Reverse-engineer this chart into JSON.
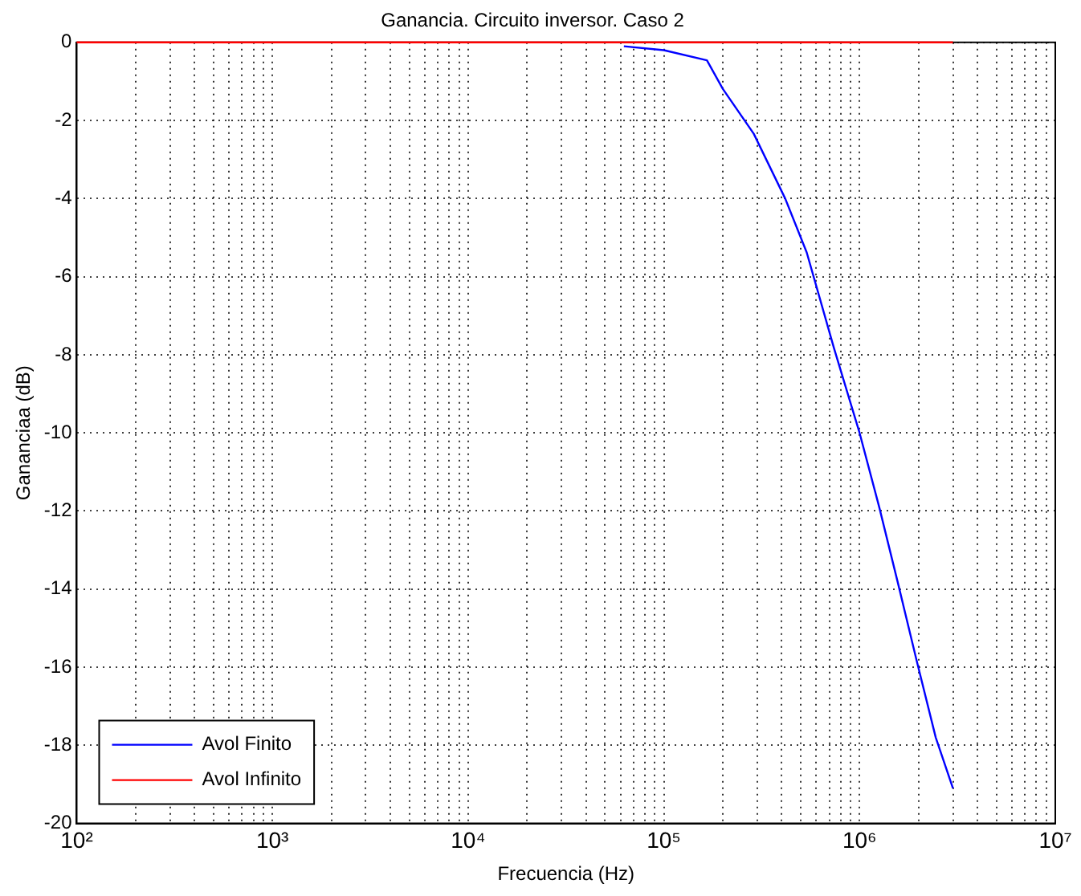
{
  "chart_data": {
    "type": "line",
    "title": "Ganancia. Circuito inversor. Caso 2",
    "xlabel": "Frecuencia (Hz)",
    "ylabel": "Gananciaa (dB)",
    "log": "x",
    "grid": true,
    "legend": "bottom left",
    "marker": "none",
    "line_style": "solid",
    "xlim": [
      100,
      10000000
    ],
    "xticks": [
      {
        "value": 100,
        "label": "10²"
      },
      {
        "value": 1000,
        "label": "10³"
      },
      {
        "value": 10000,
        "label": "10⁴"
      },
      {
        "value": 100000,
        "label": "10⁵"
      },
      {
        "value": 1000000,
        "label": "10⁶"
      },
      {
        "value": 10000000,
        "label": "10⁷"
      }
    ],
    "ylim": [
      -20,
      0
    ],
    "yticks": [
      -20,
      -18,
      -16,
      -14,
      -12,
      -10,
      -8,
      -6,
      -4,
      -2,
      0
    ],
    "series": [
      {
        "name": "Avol Finito",
        "color": "#0000ff",
        "x": [
          62500,
          100000,
          166000,
          200000,
          288000,
          417000,
          537000,
          741000,
          1000000,
          1260000,
          1580000,
          1950000,
          2450000,
          3000000
        ],
        "values": [
          -0.1,
          -0.2,
          -0.46,
          -1.19,
          -2.34,
          -4.0,
          -5.38,
          -7.84,
          -10.0,
          -11.9,
          -13.9,
          -15.8,
          -17.8,
          -19.1
        ]
      },
      {
        "name": "Avol Infinito",
        "color": "#ff0000",
        "x": [
          100,
          3000000
        ],
        "values": [
          0,
          0
        ]
      }
    ]
  }
}
